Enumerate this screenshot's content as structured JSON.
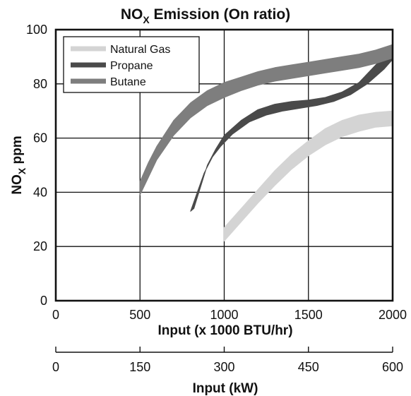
{
  "chart_data": {
    "type": "area",
    "title": "NOₓ Emission (On ratio)",
    "title_main": "NO",
    "title_sub": "X",
    "title_rest": " Emission (On ratio)",
    "ylabel": "NOₓ ppm",
    "ylabel_main": "NO",
    "ylabel_sub": "X",
    "ylabel_rest": " ppm",
    "xlabel": "Input (x 1000 BTU/hr)",
    "x2label": "Input (kW)",
    "xlim": [
      0,
      2000
    ],
    "ylim": [
      0,
      100
    ],
    "x2lim": [
      0,
      600
    ],
    "xticks": [
      0,
      500,
      1000,
      1500,
      2000
    ],
    "yticks": [
      0,
      20,
      40,
      60,
      80,
      100
    ],
    "x2ticks": [
      0,
      150,
      300,
      450,
      600
    ],
    "grid": true,
    "legend_position": "top-left",
    "series": [
      {
        "name": "Natural Gas",
        "color": "#d4d4d4",
        "upper": [
          [
            1000,
            27
          ],
          [
            1100,
            34
          ],
          [
            1200,
            41
          ],
          [
            1300,
            48
          ],
          [
            1400,
            54
          ],
          [
            1500,
            59
          ],
          [
            1600,
            63.5
          ],
          [
            1700,
            66.5
          ],
          [
            1800,
            68.5
          ],
          [
            1900,
            69.5
          ],
          [
            2000,
            70
          ]
        ],
        "lower": [
          [
            1000,
            22
          ],
          [
            1100,
            29
          ],
          [
            1200,
            36
          ],
          [
            1300,
            42.5
          ],
          [
            1400,
            48.5
          ],
          [
            1500,
            53.5
          ],
          [
            1600,
            57.5
          ],
          [
            1700,
            60.5
          ],
          [
            1800,
            62.5
          ],
          [
            1900,
            64
          ],
          [
            2000,
            64.5
          ]
        ]
      },
      {
        "name": "Propane",
        "color": "#4a4a4a",
        "upper": [
          [
            820,
            34
          ],
          [
            860,
            42
          ],
          [
            900,
            50
          ],
          [
            950,
            56
          ],
          [
            1000,
            61
          ],
          [
            1100,
            66.5
          ],
          [
            1200,
            70.5
          ],
          [
            1300,
            72.5
          ],
          [
            1400,
            73.5
          ],
          [
            1500,
            74
          ],
          [
            1600,
            75
          ],
          [
            1700,
            77
          ],
          [
            1800,
            80.5
          ],
          [
            1900,
            87
          ],
          [
            2000,
            94
          ]
        ],
        "lower": [
          [
            800,
            33
          ],
          [
            840,
            40
          ],
          [
            880,
            47
          ],
          [
            930,
            53
          ],
          [
            980,
            57
          ],
          [
            1050,
            61.5
          ],
          [
            1150,
            66
          ],
          [
            1250,
            68.5
          ],
          [
            1350,
            70
          ],
          [
            1450,
            71
          ],
          [
            1550,
            72
          ],
          [
            1650,
            73.5
          ],
          [
            1750,
            76
          ],
          [
            1850,
            80
          ],
          [
            1950,
            85.5
          ],
          [
            2000,
            89
          ]
        ]
      },
      {
        "name": "Butane",
        "color": "#7e7e7e",
        "upper": [
          [
            500,
            44
          ],
          [
            550,
            51
          ],
          [
            600,
            57
          ],
          [
            700,
            66.5
          ],
          [
            800,
            73
          ],
          [
            900,
            77.5
          ],
          [
            1000,
            80.5
          ],
          [
            1100,
            82.5
          ],
          [
            1200,
            84.5
          ],
          [
            1300,
            86
          ],
          [
            1400,
            87
          ],
          [
            1500,
            88
          ],
          [
            1600,
            89
          ],
          [
            1700,
            90
          ],
          [
            1800,
            91
          ],
          [
            1900,
            92.5
          ],
          [
            2000,
            94.5
          ]
        ],
        "lower": [
          [
            500,
            39
          ],
          [
            550,
            45.5
          ],
          [
            600,
            52
          ],
          [
            700,
            61
          ],
          [
            800,
            67.5
          ],
          [
            900,
            72
          ],
          [
            1000,
            75
          ],
          [
            1100,
            77.5
          ],
          [
            1200,
            79.5
          ],
          [
            1300,
            81
          ],
          [
            1400,
            82
          ],
          [
            1500,
            83
          ],
          [
            1600,
            84
          ],
          [
            1700,
            85
          ],
          [
            1800,
            86
          ],
          [
            1900,
            87.5
          ],
          [
            2000,
            89.5
          ]
        ]
      }
    ]
  }
}
